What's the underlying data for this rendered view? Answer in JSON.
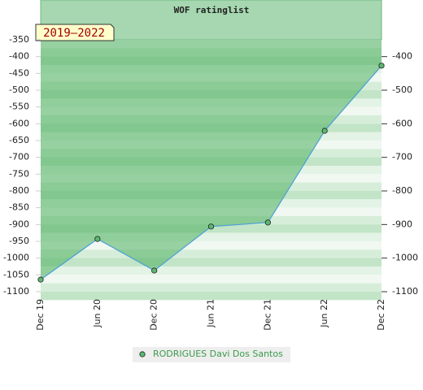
{
  "chart_data": {
    "type": "line",
    "title": "WOF ratinglist",
    "annotation": "2019–2022",
    "categories": [
      "Dec 19",
      "Jun 20",
      "Dec 20",
      "Jun 21",
      "Dec 21",
      "Jun 22",
      "Dec 22"
    ],
    "series": [
      {
        "name": "RODRIGUES Davi Dos Santos",
        "color": "#4a9fd8",
        "marker_color": "#5cb870",
        "values": [
          -1064,
          -943,
          -1037,
          -906,
          -894,
          -621,
          -427
        ]
      }
    ],
    "ylim": [
      -1100,
      -350
    ],
    "yticks": [
      -1100,
      -1050,
      -1000,
      -950,
      -900,
      -850,
      -800,
      -750,
      -700,
      -650,
      -600,
      -550,
      -500,
      -450,
      -400,
      -350
    ],
    "y2lim": [
      -1100,
      -350
    ],
    "y2ticks": [
      -1100,
      -1000,
      -900,
      -800,
      -700,
      -600,
      -500,
      -400
    ],
    "area_fill": true,
    "legend": "bottom"
  }
}
